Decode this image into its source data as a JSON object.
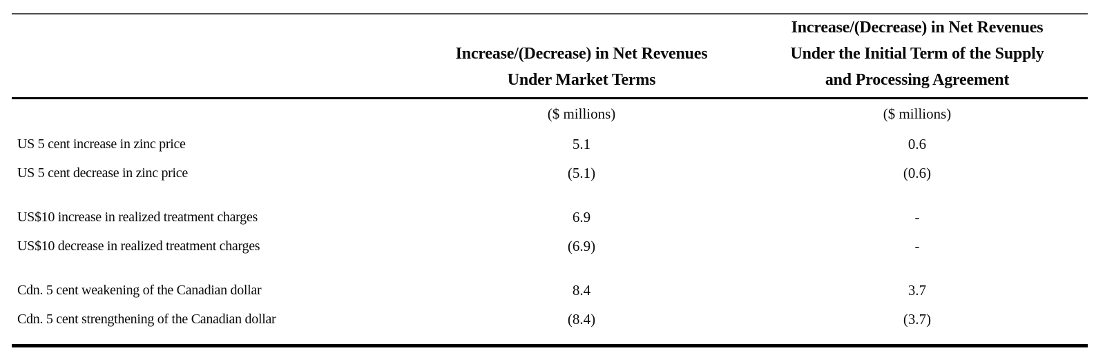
{
  "colors": {
    "text": "#0a0a0a",
    "rule_light": "#4d4d4d",
    "rule_dark": "#000000",
    "background": "#ffffff"
  },
  "table": {
    "columns": [
      {
        "header_lines": [
          "Increase/(Decrease) in Net Revenues",
          "Under Market Terms"
        ],
        "units": "($ millions)"
      },
      {
        "header_lines": [
          "Increase/(Decrease) in Net Revenues",
          "Under the Initial Term of the Supply",
          "and Processing Agreement"
        ],
        "units": "($ millions)"
      }
    ],
    "rows": [
      {
        "label": "US 5 cent increase in zinc price",
        "market_terms": "5.1",
        "initial_term": "0.6"
      },
      {
        "label": "US 5 cent decrease in zinc price",
        "market_terms": "(5.1)",
        "initial_term": "(0.6)"
      },
      {
        "label": "US$10 increase in realized treatment charges",
        "market_terms": "6.9",
        "initial_term": "-"
      },
      {
        "label": "US$10 decrease in realized treatment charges",
        "market_terms": "(6.9)",
        "initial_term": "-"
      },
      {
        "label": "Cdn. 5 cent weakening of the Canadian dollar",
        "market_terms": "8.4",
        "initial_term": "3.7"
      },
      {
        "label": "Cdn. 5 cent strengthening of the Canadian dollar",
        "market_terms": "(8.4)",
        "initial_term": "(3.7)"
      }
    ]
  }
}
